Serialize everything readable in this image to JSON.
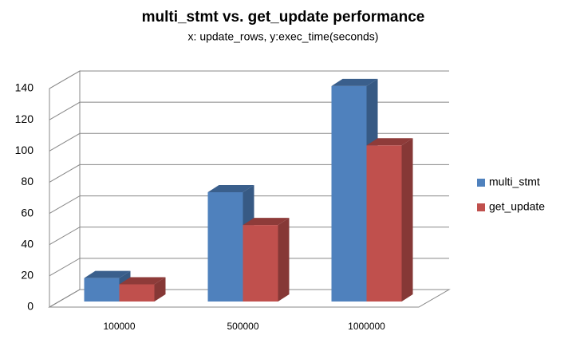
{
  "chart_data": {
    "type": "bar3d",
    "title": "multi_stmt  vs.  get_update performance",
    "subtitle": "x: update_rows,  y:exec_time(seconds)",
    "categories": [
      "100000",
      "500000",
      "1000000"
    ],
    "series": [
      {
        "name": "multi_stmt",
        "color": "#4f81bd",
        "values": [
          15,
          70,
          138
        ]
      },
      {
        "name": "get_update",
        "color": "#c0504d",
        "values": [
          11,
          49,
          100
        ]
      }
    ],
    "ylim": [
      0,
      140
    ],
    "yticks": [
      0,
      20,
      40,
      60,
      80,
      100,
      120,
      140
    ],
    "grid": true,
    "legend": "right"
  }
}
